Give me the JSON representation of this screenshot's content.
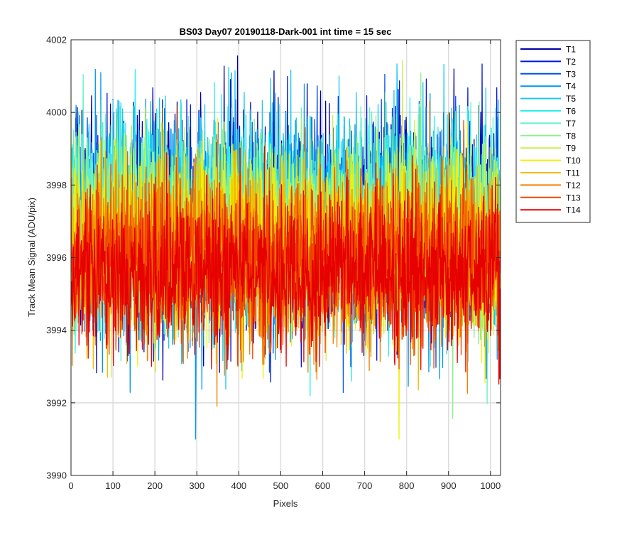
{
  "chart_data": {
    "type": "line",
    "title": "BS03 Day07 20190118-Dark-001 int time = 15 sec",
    "xlabel": "Pixels",
    "ylabel": "Track Mean Signal (ADU/pix)",
    "xlim": [
      0,
      1024
    ],
    "ylim": [
      3990,
      4002
    ],
    "xticks": [
      0,
      100,
      200,
      300,
      400,
      500,
      600,
      700,
      800,
      900,
      1000
    ],
    "yticks": [
      3990,
      3992,
      3994,
      3996,
      3998,
      4000,
      4002
    ],
    "grid": true,
    "legend": "outside-right-top",
    "x_points": 1024,
    "series": [
      {
        "name": "T1",
        "color": "#0000aa",
        "mean": 3997.1,
        "noise": 1.45
      },
      {
        "name": "T2",
        "color": "#0018d8",
        "mean": 3996.9,
        "noise": 1.45
      },
      {
        "name": "T3",
        "color": "#0050f0",
        "mean": 3996.8,
        "noise": 1.4
      },
      {
        "name": "T4",
        "color": "#0096f0",
        "mean": 3996.7,
        "noise": 1.4
      },
      {
        "name": "T5",
        "color": "#19c8f0",
        "mean": 3997.3,
        "noise": 1.35
      },
      {
        "name": "T6",
        "color": "#28f0f0",
        "mean": 3997.0,
        "noise": 1.35
      },
      {
        "name": "T7",
        "color": "#64f0c8",
        "mean": 3996.9,
        "noise": 1.3
      },
      {
        "name": "T8",
        "color": "#8cf08c",
        "mean": 3996.8,
        "noise": 1.3
      },
      {
        "name": "T9",
        "color": "#c8f050",
        "mean": 3996.6,
        "noise": 1.25
      },
      {
        "name": "T10",
        "color": "#f0f000",
        "mean": 3996.4,
        "noise": 1.25
      },
      {
        "name": "T11",
        "color": "#f0be00",
        "mean": 3996.2,
        "noise": 1.2
      },
      {
        "name": "T12",
        "color": "#f08200",
        "mean": 3996.0,
        "noise": 1.2
      },
      {
        "name": "T13",
        "color": "#f04600",
        "mean": 3995.9,
        "noise": 1.15
      },
      {
        "name": "T14",
        "color": "#e60000",
        "mean": 3995.6,
        "noise": 1.1
      }
    ]
  }
}
